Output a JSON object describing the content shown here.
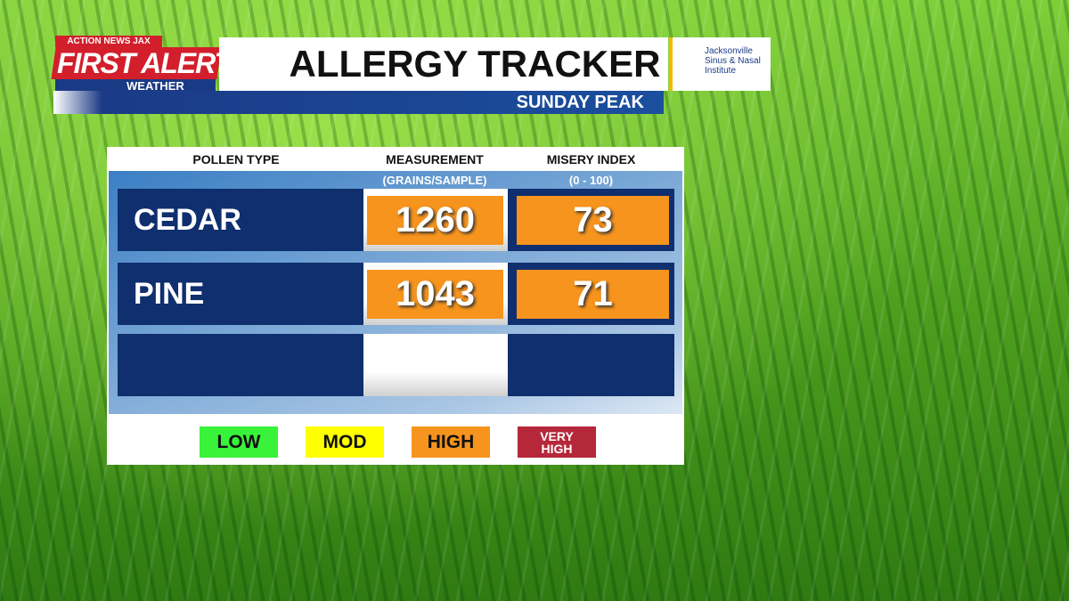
{
  "header": {
    "brand": {
      "network": "ACTION NEWS JAX",
      "first": "FIRST",
      "alert": "ALERT",
      "weather": "WEATHER"
    },
    "title": "ALLERGY TRACKER",
    "subtitle": "SUNDAY PEAK",
    "sponsor": {
      "lines": [
        "Jacksonville",
        "Sinus & Nasal",
        "Institute"
      ]
    }
  },
  "table": {
    "columns": [
      {
        "label": "POLLEN TYPE"
      },
      {
        "label": "MEASUREMENT",
        "unit": "(GRAINS/SAMPLE)"
      },
      {
        "label": "MISERY INDEX",
        "unit": "(0 - 100)"
      }
    ],
    "rows": [
      [
        "CEDAR",
        "1260",
        "73"
      ],
      [
        "PINE",
        "1043",
        "71"
      ]
    ]
  },
  "legend": [
    "LOW",
    "MOD",
    "HIGH",
    "VERY HIGH"
  ]
}
